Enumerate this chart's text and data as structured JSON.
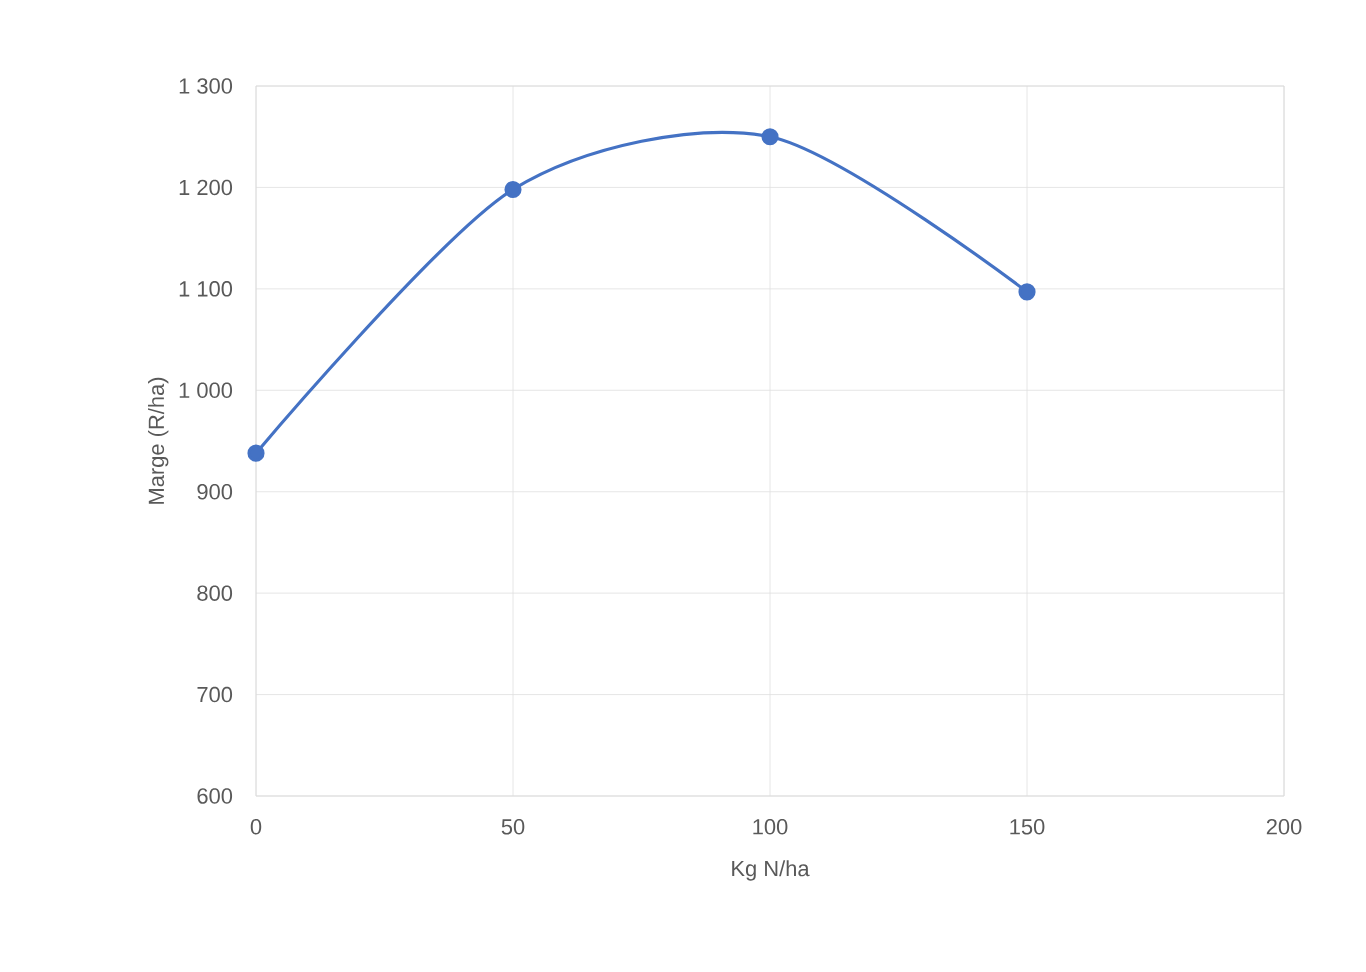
{
  "chart_data": {
    "type": "line",
    "xlabel": "Kg N/ha",
    "ylabel": "Marge (R/ha)",
    "x": [
      0,
      50,
      100,
      150
    ],
    "series": [
      {
        "color": "#4472c4",
        "values": [
          938,
          1198,
          1250,
          1097
        ]
      }
    ],
    "xlim": [
      0,
      200
    ],
    "xticks": [
      0,
      50,
      100,
      150,
      200
    ],
    "ylim": [
      600,
      1300
    ],
    "yticks": [
      600,
      700,
      800,
      900,
      {
        "value": 1000,
        "label": "1 000"
      },
      {
        "value": 1100,
        "label": "1 100"
      },
      {
        "value": 1200,
        "label": "1 200"
      },
      {
        "value": 1300,
        "label": "1 300"
      }
    ],
    "grid": true,
    "marker": "circle",
    "line_style": "solid"
  }
}
